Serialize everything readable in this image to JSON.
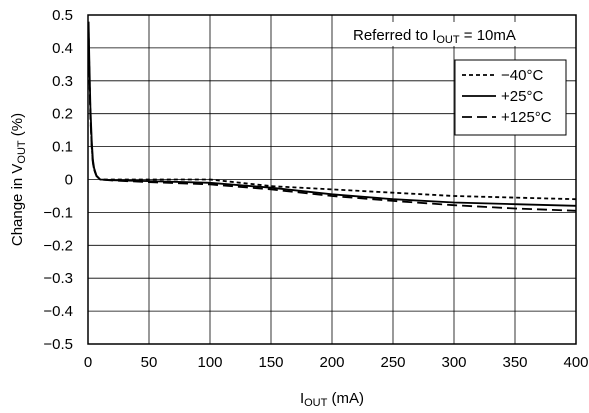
{
  "chart_data": {
    "type": "line",
    "xlabel": "I",
    "xlabel_sub": "OUT",
    "xlabel_unit": " (mA)",
    "ylabel": "Change in V",
    "ylabel_sub": "OUT",
    "ylabel_unit": " (%)",
    "annotation": {
      "text": "Referred to I",
      "sub": "OUT",
      "rest": " = 10mA"
    },
    "xlim": [
      0,
      400
    ],
    "ylim": [
      -0.5,
      0.5
    ],
    "x_ticks": [
      0,
      50,
      100,
      150,
      200,
      250,
      300,
      350,
      400
    ],
    "x_tick_labels": [
      "0",
      "50",
      "100",
      "150",
      "200",
      "250",
      "300",
      "350",
      "400"
    ],
    "y_ticks": [
      0.5,
      0.4,
      0.3,
      0.2,
      0.1,
      0,
      -0.1,
      -0.2,
      -0.3,
      -0.4,
      -0.5
    ],
    "y_tick_labels": [
      "0.5",
      "0.4",
      "0.3",
      "0.2",
      "0.1",
      "0",
      "−0.1",
      "−0.2",
      "−0.3",
      "−0.4",
      "−0.5"
    ],
    "grid": true,
    "legend_position": "top-right",
    "series": [
      {
        "name": "−40°C",
        "style": "dotted",
        "x": [
          0.5,
          1,
          2,
          3,
          4,
          5,
          7,
          10,
          20,
          50,
          100,
          150,
          200,
          250,
          300,
          350,
          400
        ],
        "y": [
          0.45,
          0.35,
          0.2,
          0.1,
          0.05,
          0.03,
          0.01,
          0.0,
          0.0,
          0.0,
          0.0,
          -0.02,
          -0.03,
          -0.04,
          -0.05,
          -0.055,
          -0.06
        ]
      },
      {
        "name": "+25°C",
        "style": "solid",
        "x": [
          0.5,
          1,
          2,
          3,
          4,
          5,
          7,
          10,
          20,
          50,
          100,
          150,
          200,
          250,
          300,
          350,
          400
        ],
        "y": [
          0.48,
          0.38,
          0.22,
          0.12,
          0.06,
          0.035,
          0.012,
          0.0,
          -0.002,
          -0.005,
          -0.01,
          -0.025,
          -0.045,
          -0.06,
          -0.07,
          -0.075,
          -0.08
        ]
      },
      {
        "name": "+125°C",
        "style": "dashed",
        "x": [
          0.5,
          1,
          2,
          3,
          4,
          5,
          7,
          10,
          20,
          50,
          100,
          150,
          200,
          250,
          300,
          350,
          400
        ],
        "y": [
          0.44,
          0.33,
          0.19,
          0.1,
          0.05,
          0.03,
          0.01,
          0.0,
          -0.003,
          -0.008,
          -0.015,
          -0.03,
          -0.05,
          -0.065,
          -0.078,
          -0.088,
          -0.095
        ]
      }
    ],
    "colors": {
      "line": "#000000",
      "grid": "#000000",
      "background": "#ffffff"
    }
  }
}
